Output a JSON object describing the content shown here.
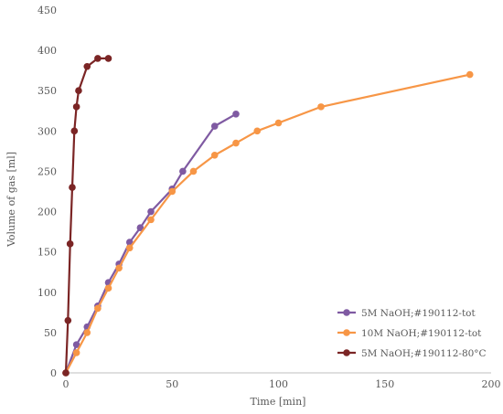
{
  "chart_data": {
    "type": "line",
    "xlabel": "Time [min]",
    "ylabel": "Volume of gas [ml]",
    "xlim": [
      0,
      200
    ],
    "ylim": [
      0,
      450
    ],
    "x_ticks": [
      0,
      50,
      100,
      150,
      200
    ],
    "y_ticks": [
      0,
      50,
      100,
      150,
      200,
      250,
      300,
      350,
      400,
      450
    ],
    "legend_position": "bottom-right",
    "grid": false,
    "series": [
      {
        "name": "5M NaOH;#190112-tot",
        "color": "#7f5aa2",
        "points": [
          [
            0,
            0
          ],
          [
            5,
            35
          ],
          [
            10,
            57
          ],
          [
            15,
            83
          ],
          [
            20,
            112
          ],
          [
            25,
            135
          ],
          [
            30,
            162
          ],
          [
            35,
            180
          ],
          [
            40,
            200
          ],
          [
            50,
            228
          ],
          [
            55,
            250
          ],
          [
            70,
            306
          ],
          [
            80,
            321
          ]
        ]
      },
      {
        "name": "10M NaOH;#190112-tot",
        "color": "#f79646",
        "points": [
          [
            0,
            0
          ],
          [
            5,
            25
          ],
          [
            10,
            50
          ],
          [
            15,
            80
          ],
          [
            20,
            105
          ],
          [
            25,
            130
          ],
          [
            30,
            155
          ],
          [
            40,
            190
          ],
          [
            50,
            225
          ],
          [
            60,
            250
          ],
          [
            70,
            270
          ],
          [
            80,
            285
          ],
          [
            90,
            300
          ],
          [
            100,
            310
          ],
          [
            120,
            330
          ],
          [
            190,
            370
          ]
        ]
      },
      {
        "name": "5M NaOH;#190112-80°C",
        "color": "#7b2525",
        "points": [
          [
            0,
            0
          ],
          [
            1,
            65
          ],
          [
            2,
            160
          ],
          [
            3,
            230
          ],
          [
            4,
            300
          ],
          [
            5,
            330
          ],
          [
            6,
            350
          ],
          [
            10,
            380
          ],
          [
            15,
            390
          ],
          [
            20,
            390
          ]
        ]
      }
    ]
  }
}
